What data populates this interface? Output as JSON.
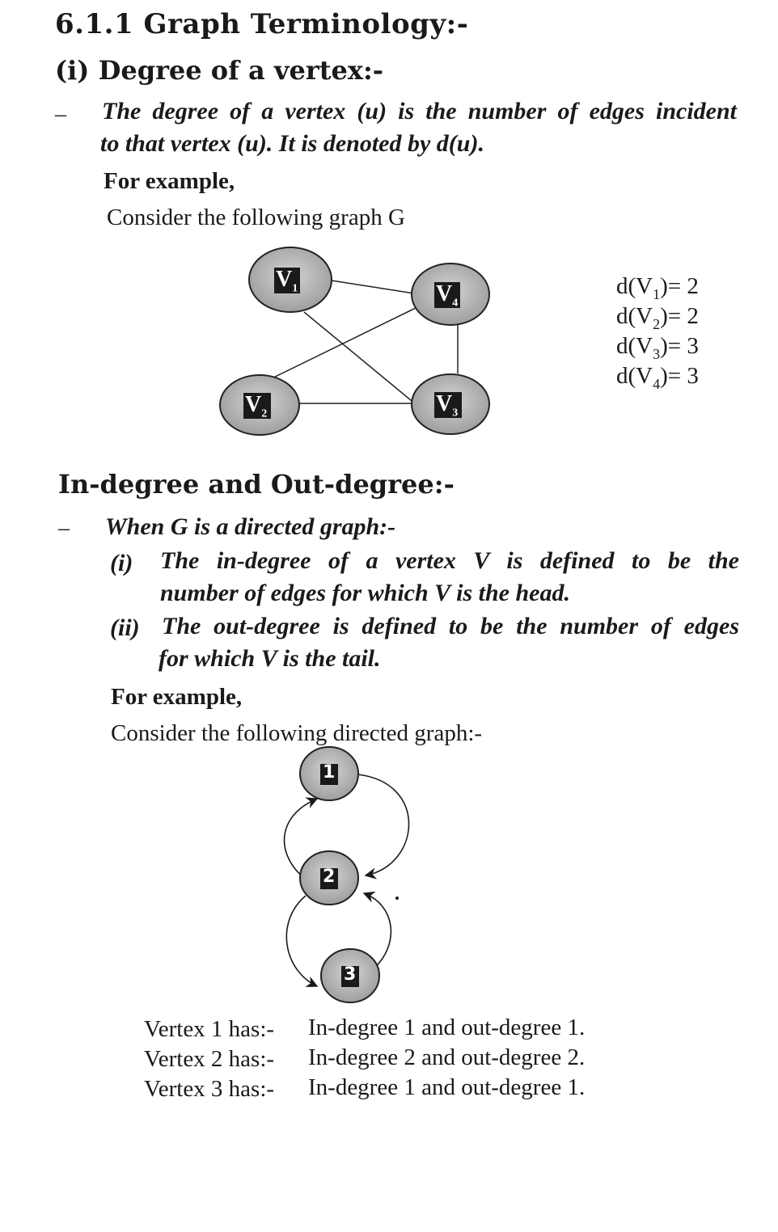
{
  "section_title": "6.1.1 Graph Terminology:-",
  "subsection_degree": "(i) Degree of a vertex:-",
  "bullet_dash": "–",
  "degree_def_line1": "The degree of a vertex (u) is the number of edges incident",
  "degree_def_line2": "to that vertex (u).  It is denoted by d(u).",
  "for_example_1": "For example,",
  "consider_graph_g": "Consider the following graph G",
  "undirected_graph": {
    "vertices": [
      {
        "id": "V1",
        "base": "V",
        "sub": "1"
      },
      {
        "id": "V2",
        "base": "V",
        "sub": "2"
      },
      {
        "id": "V3",
        "base": "V",
        "sub": "3"
      },
      {
        "id": "V4",
        "base": "V",
        "sub": "4"
      }
    ],
    "edges": [
      [
        "V1",
        "V4"
      ],
      [
        "V1",
        "V3"
      ],
      [
        "V2",
        "V4"
      ],
      [
        "V2",
        "V3"
      ],
      [
        "V4",
        "V3"
      ]
    ]
  },
  "degree_values": [
    {
      "label": "d(V",
      "sub": "1",
      "rest": ")= 2"
    },
    {
      "label": "d(V",
      "sub": "2",
      "rest": ")= 2"
    },
    {
      "label": "d(V",
      "sub": "3",
      "rest": ")= 3"
    },
    {
      "label": "d(V",
      "sub": "4",
      "rest": ")= 3"
    }
  ],
  "in_out_heading": "In-degree and Out-degree:-",
  "when_directed": "When G is a directed graph:-",
  "item_i_marker": "(i)",
  "item_i_line1": "The in-degree of a vertex V is defined to be the",
  "item_i_line2": "number of edges for which V is the head.",
  "item_ii_marker": "(ii)",
  "item_ii_line1": "The out-degree is defined to be the number of edges",
  "item_ii_line2": "for which V is the tail.",
  "for_example_2": "For example,",
  "consider_directed": "Consider the following directed graph:-",
  "directed_graph": {
    "vertices": [
      "1",
      "2",
      "3"
    ]
  },
  "vertex_summary": [
    {
      "vertex": "Vertex 1 has:-",
      "desc": "In-degree 1 and out-degree 1."
    },
    {
      "vertex": "Vertex 2 has:-",
      "desc": "In-degree 2 and out-degree 2."
    },
    {
      "vertex": "Vertex 3 has:-",
      "desc": "In-degree 1 and out-degree 1."
    }
  ]
}
